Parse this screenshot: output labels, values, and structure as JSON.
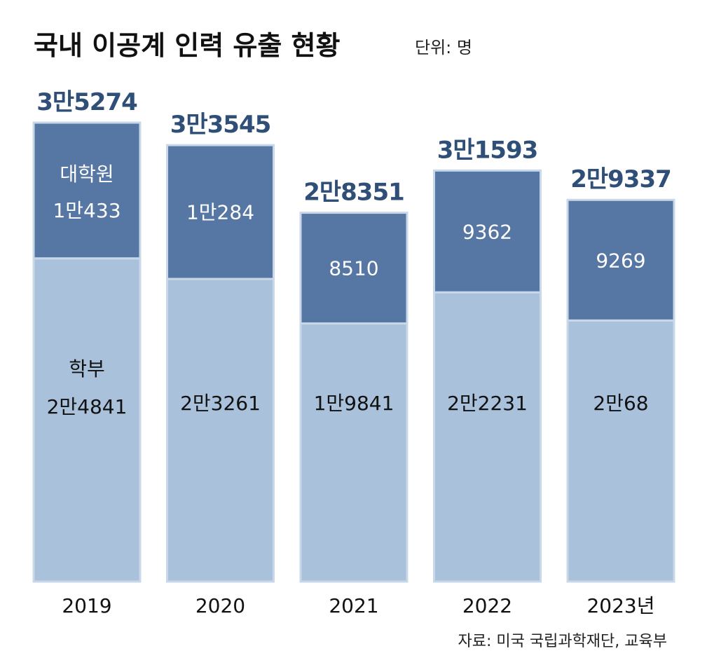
{
  "chart_data": {
    "type": "bar",
    "stacked": true,
    "title": "국내 이공계 인력 유출 현황",
    "unit": "단위: 명",
    "categories": [
      "2019",
      "2020",
      "2021",
      "2022",
      "2023년"
    ],
    "series": [
      {
        "name": "학부",
        "values": [
          24841,
          23261,
          19841,
          22231,
          20068
        ],
        "display_labels": [
          "2만4841",
          "2만3261",
          "1만9841",
          "2만2231",
          "2만68"
        ],
        "color": "#a9c1db"
      },
      {
        "name": "대학원",
        "values": [
          10433,
          10284,
          8510,
          9362,
          9269
        ],
        "display_labels": [
          "1만433",
          "1만284",
          "8510",
          "9362",
          "9269"
        ],
        "color": "#5676a3"
      }
    ],
    "totals": [
      35274,
      33545,
      28351,
      31593,
      29337
    ],
    "total_labels": [
      "3만5274",
      "3만3545",
      "2만8351",
      "3만1593",
      "2만9337"
    ],
    "total_label_color": "#2f4f78",
    "xlabel": "",
    "ylabel": "",
    "ylim": [
      0,
      35274
    ],
    "grid": false,
    "source": "자료: 미국 국립과학재단, 교육부"
  }
}
